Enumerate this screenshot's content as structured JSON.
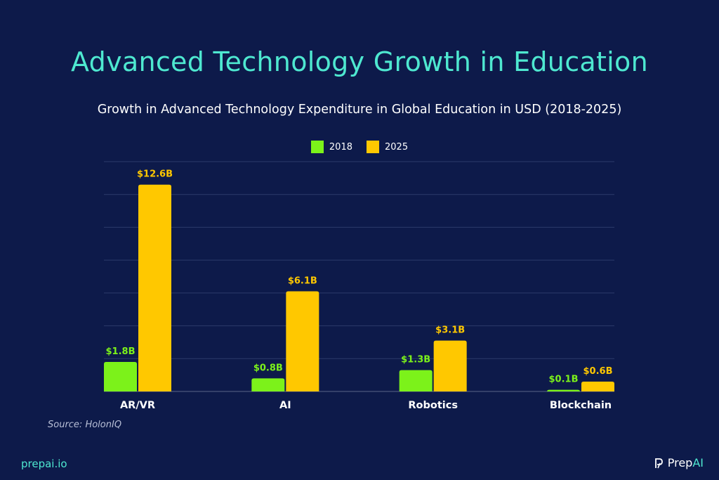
{
  "title": "Advanced Technology Growth in Education",
  "subtitle": "Growth in Advanced Technology Expenditure in Global Education in USD (2018-2025)",
  "legend": [
    {
      "label": "2018",
      "color": "#7cf21a"
    },
    {
      "label": "2025",
      "color": "#ffc800"
    }
  ],
  "source": "Source: HolonIQ",
  "footer": {
    "site": "prepai.io",
    "brand_prep": "Prep",
    "brand_ai": "AI",
    "brand_logo_icon": "prepai-logo-icon"
  },
  "chart_data": {
    "type": "bar",
    "categories": [
      "AR/VR",
      "AI",
      "Robotics",
      "Blockchain"
    ],
    "series": [
      {
        "name": "2018",
        "color": "#7cf21a",
        "values": [
          1.8,
          0.8,
          1.3,
          0.1
        ],
        "labels": [
          "$1.8B",
          "$0.8B",
          "$1.3B",
          "$0.1B"
        ]
      },
      {
        "name": "2025",
        "color": "#ffc800",
        "values": [
          12.6,
          6.1,
          3.1,
          0.6
        ],
        "labels": [
          "$12.6B",
          "$6.1B",
          "$3.1B",
          "$0.6B"
        ]
      }
    ],
    "ylim": [
      0,
      14
    ],
    "grid_step": 2,
    "grid": true,
    "xlabel": "",
    "ylabel": "",
    "legend_position": "top-center"
  }
}
